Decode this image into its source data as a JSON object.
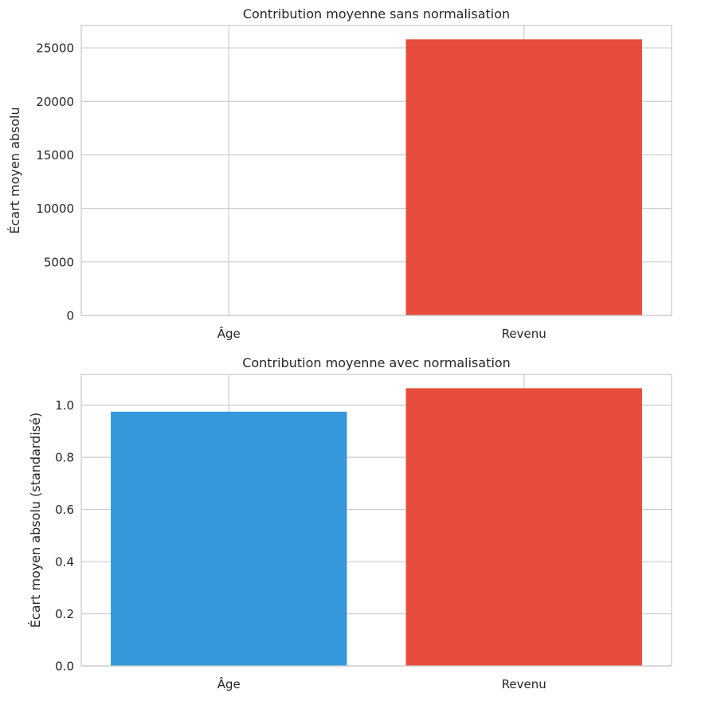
{
  "chart_data": [
    {
      "type": "bar",
      "title": "Contribution moyenne sans normalisation",
      "xlabel": "",
      "ylabel": "Écart moyen absolu",
      "categories": [
        "Âge",
        "Revenu"
      ],
      "values": [
        14,
        25800
      ],
      "colors": [
        "#3498db",
        "#e74c3c"
      ],
      "ylim": [
        0,
        27090
      ],
      "yticks": [
        0,
        5000,
        10000,
        15000,
        20000,
        25000
      ],
      "ytick_labels": [
        "0",
        "5000",
        "10000",
        "15000",
        "20000",
        "25000"
      ],
      "grid": true
    },
    {
      "type": "bar",
      "title": "Contribution moyenne avec normalisation",
      "xlabel": "",
      "ylabel": "Écart moyen absolu (standardisé)",
      "categories": [
        "Âge",
        "Revenu"
      ],
      "values": [
        0.975,
        1.065
      ],
      "colors": [
        "#3498db",
        "#e74c3c"
      ],
      "ylim": [
        0,
        1.118
      ],
      "yticks": [
        0,
        0.2,
        0.4,
        0.6,
        0.8,
        1.0
      ],
      "ytick_labels": [
        "0.0",
        "0.2",
        "0.4",
        "0.6",
        "0.8",
        "1.0"
      ],
      "grid": true
    }
  ]
}
